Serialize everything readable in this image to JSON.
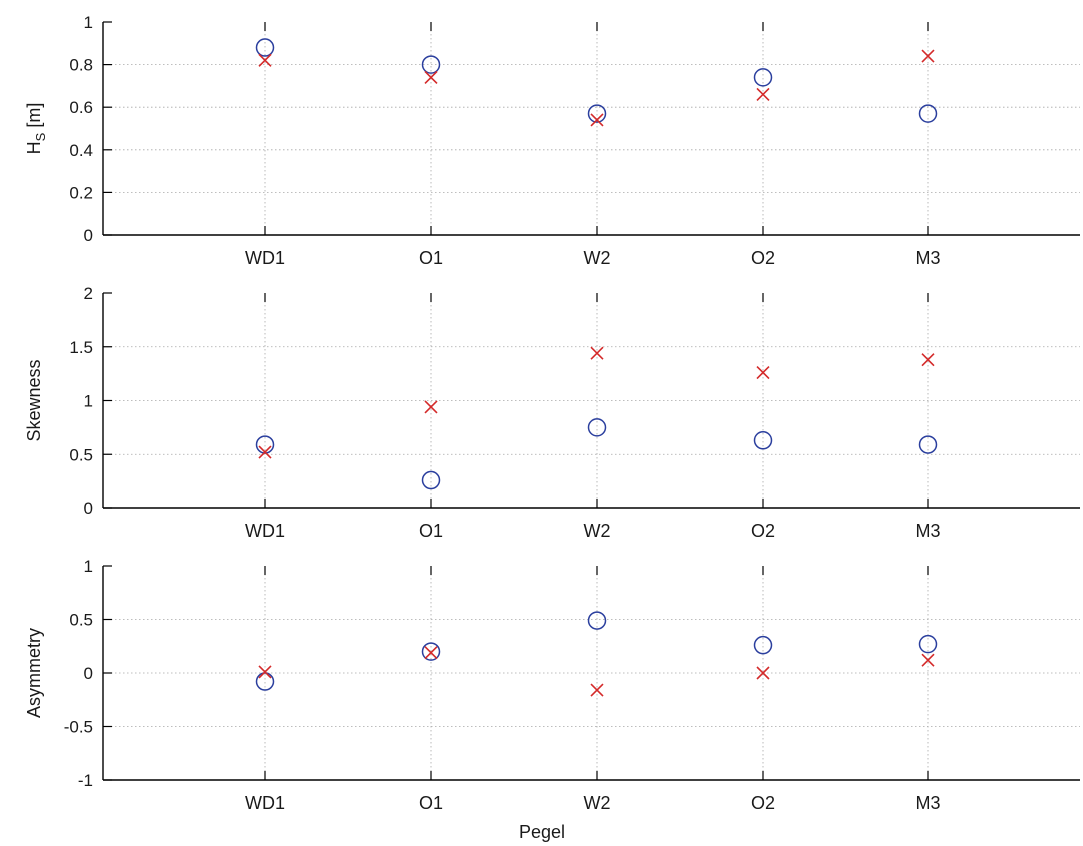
{
  "chart_data": [
    {
      "type": "scatter",
      "categories": [
        "WD1",
        "O1",
        "W2",
        "O2",
        "M3"
      ],
      "ylabel": "H",
      "ylabel_sub": "S",
      "ylabel_unit": " [m]",
      "ylim": [
        0,
        1
      ],
      "yticks": [
        0,
        0.2,
        0.4,
        0.6,
        0.8,
        1
      ],
      "ytick_labels": [
        "0",
        "0.2",
        "0.4",
        "0.6",
        "0.8",
        "1"
      ],
      "grid": true,
      "series": [
        {
          "marker": "circle",
          "color": "#2b3f9e",
          "values": [
            0.88,
            0.8,
            0.57,
            0.74,
            0.57
          ]
        },
        {
          "marker": "cross",
          "color": "#d42a2a",
          "values": [
            0.82,
            0.74,
            0.54,
            0.66,
            0.84
          ]
        }
      ]
    },
    {
      "type": "scatter",
      "categories": [
        "WD1",
        "O1",
        "W2",
        "O2",
        "M3"
      ],
      "ylabel": "Skewness",
      "ylim": [
        0,
        2
      ],
      "yticks": [
        0,
        0.5,
        1,
        1.5,
        2
      ],
      "ytick_labels": [
        "0",
        "0.5",
        "1",
        "1.5",
        "2"
      ],
      "grid": true,
      "series": [
        {
          "marker": "circle",
          "color": "#2b3f9e",
          "values": [
            0.59,
            0.26,
            0.75,
            0.63,
            0.59
          ]
        },
        {
          "marker": "cross",
          "color": "#d42a2a",
          "values": [
            0.52,
            0.94,
            1.44,
            1.26,
            1.38
          ]
        }
      ]
    },
    {
      "type": "scatter",
      "categories": [
        "WD1",
        "O1",
        "W2",
        "O2",
        "M3"
      ],
      "xlabel": "Pegel",
      "ylabel": "Asymmetry",
      "ylim": [
        -1,
        1
      ],
      "yticks": [
        -1,
        -0.5,
        0,
        0.5,
        1
      ],
      "ytick_labels": [
        "-1",
        "-0.5",
        "0",
        "0.5",
        "1"
      ],
      "grid": true,
      "series": [
        {
          "marker": "circle",
          "color": "#2b3f9e",
          "values": [
            -0.08,
            0.2,
            0.49,
            0.26,
            0.27
          ]
        },
        {
          "marker": "cross",
          "color": "#d42a2a",
          "values": [
            0.01,
            0.19,
            -0.16,
            0.0,
            0.12
          ]
        }
      ]
    }
  ]
}
